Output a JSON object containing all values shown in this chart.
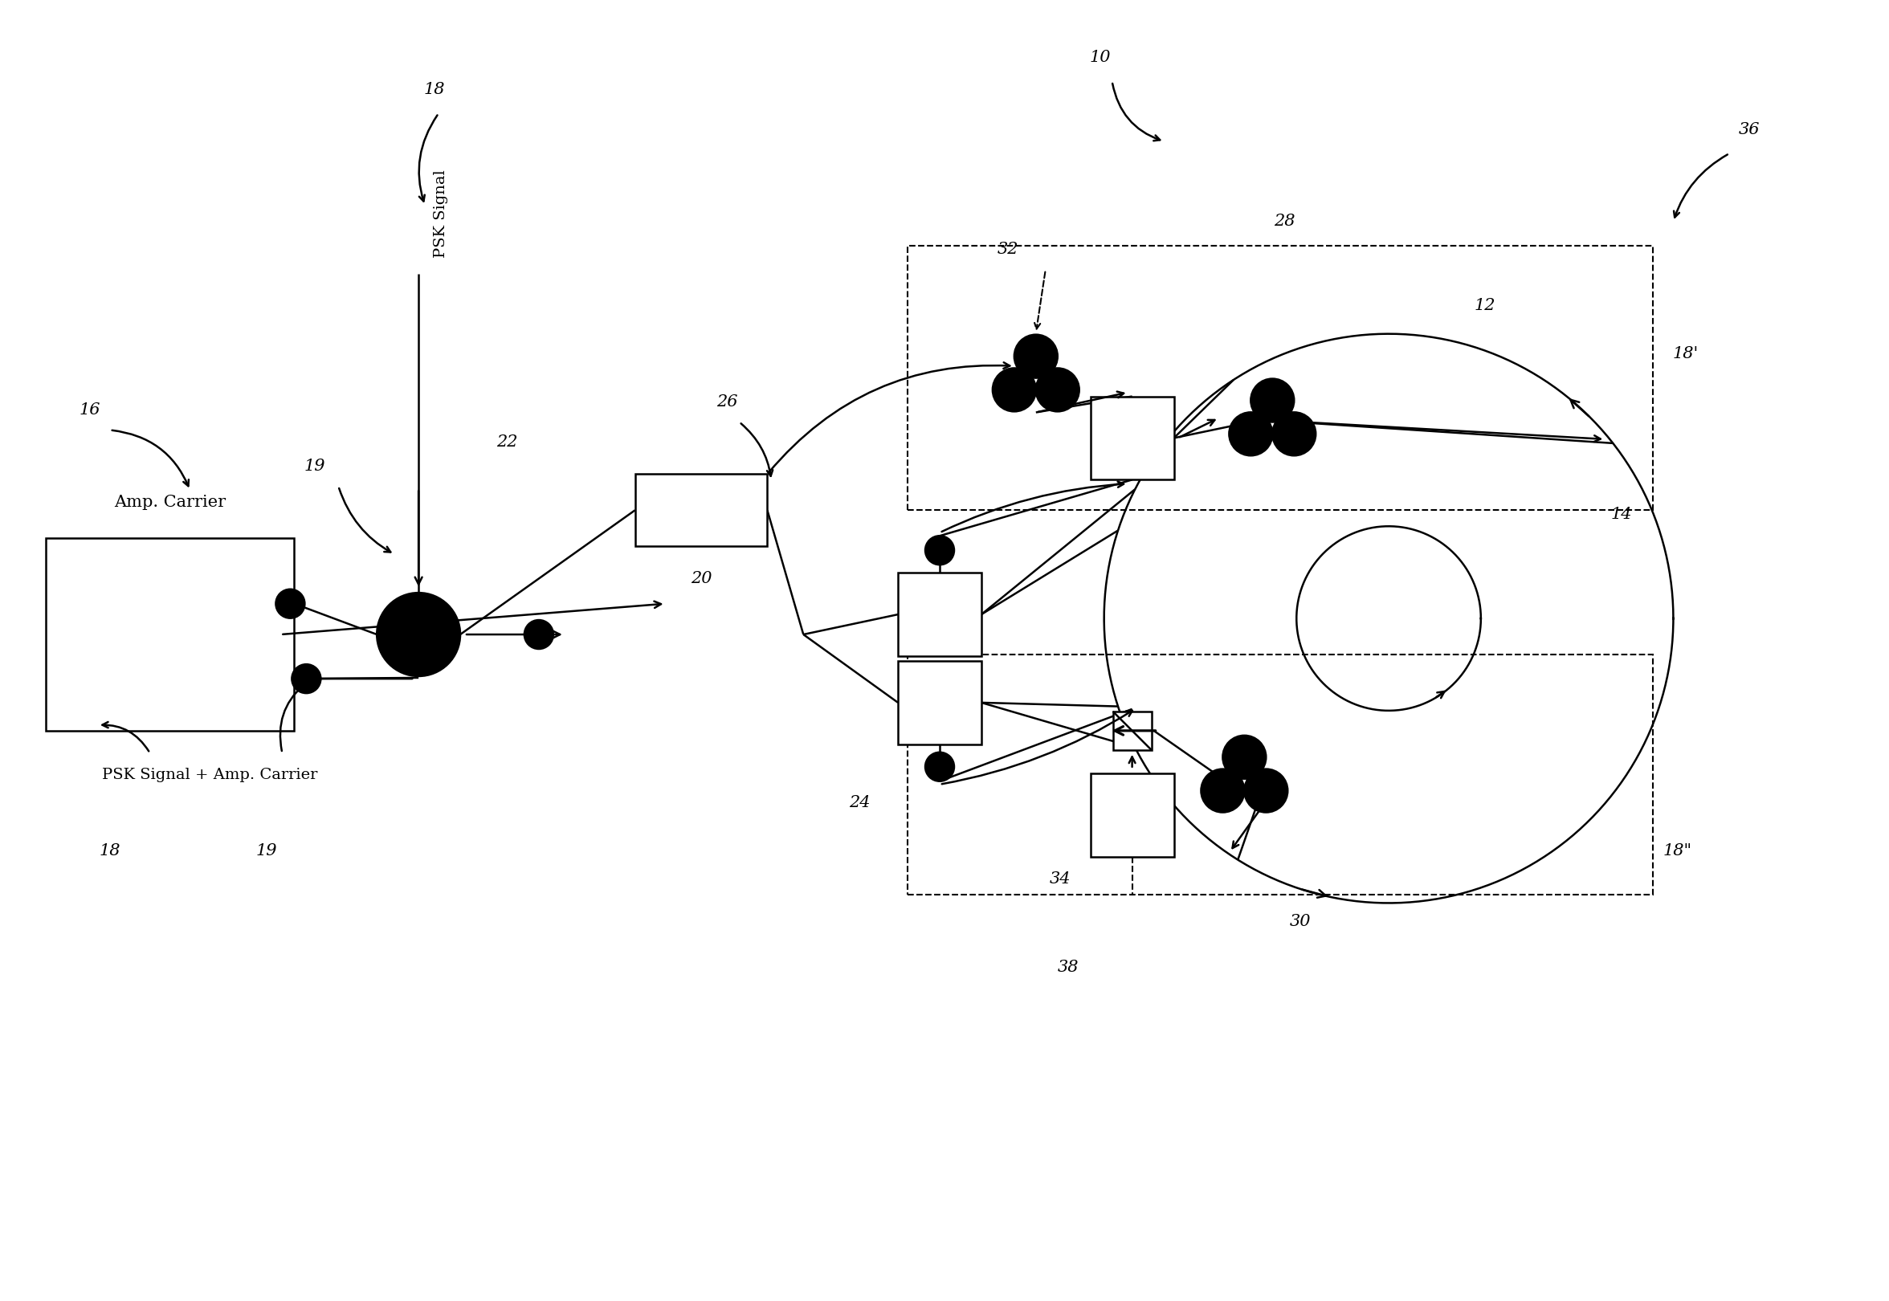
{
  "bg_color": "#ffffff",
  "line_color": "#000000",
  "fig_width": 23.52,
  "fig_height": 16.2,
  "lw": 1.8,
  "labels": {
    "18_top": "18",
    "10": "10",
    "36": "36",
    "26": "26",
    "32": "32",
    "28": "28",
    "18p": "18'",
    "12": "12",
    "14": "14",
    "19_top": "19",
    "16": "16",
    "22": "22",
    "20": "20",
    "PSK_Signal": "PSK Signal",
    "Amp_Carrier": "Amp. Carrier",
    "24": "24",
    "18_bottom": "18",
    "19_bottom": "19",
    "PSK_bottom": "PSK Signal + Amp. Carrier",
    "34": "34",
    "38": "38",
    "30": "30",
    "18pp": "18\""
  }
}
